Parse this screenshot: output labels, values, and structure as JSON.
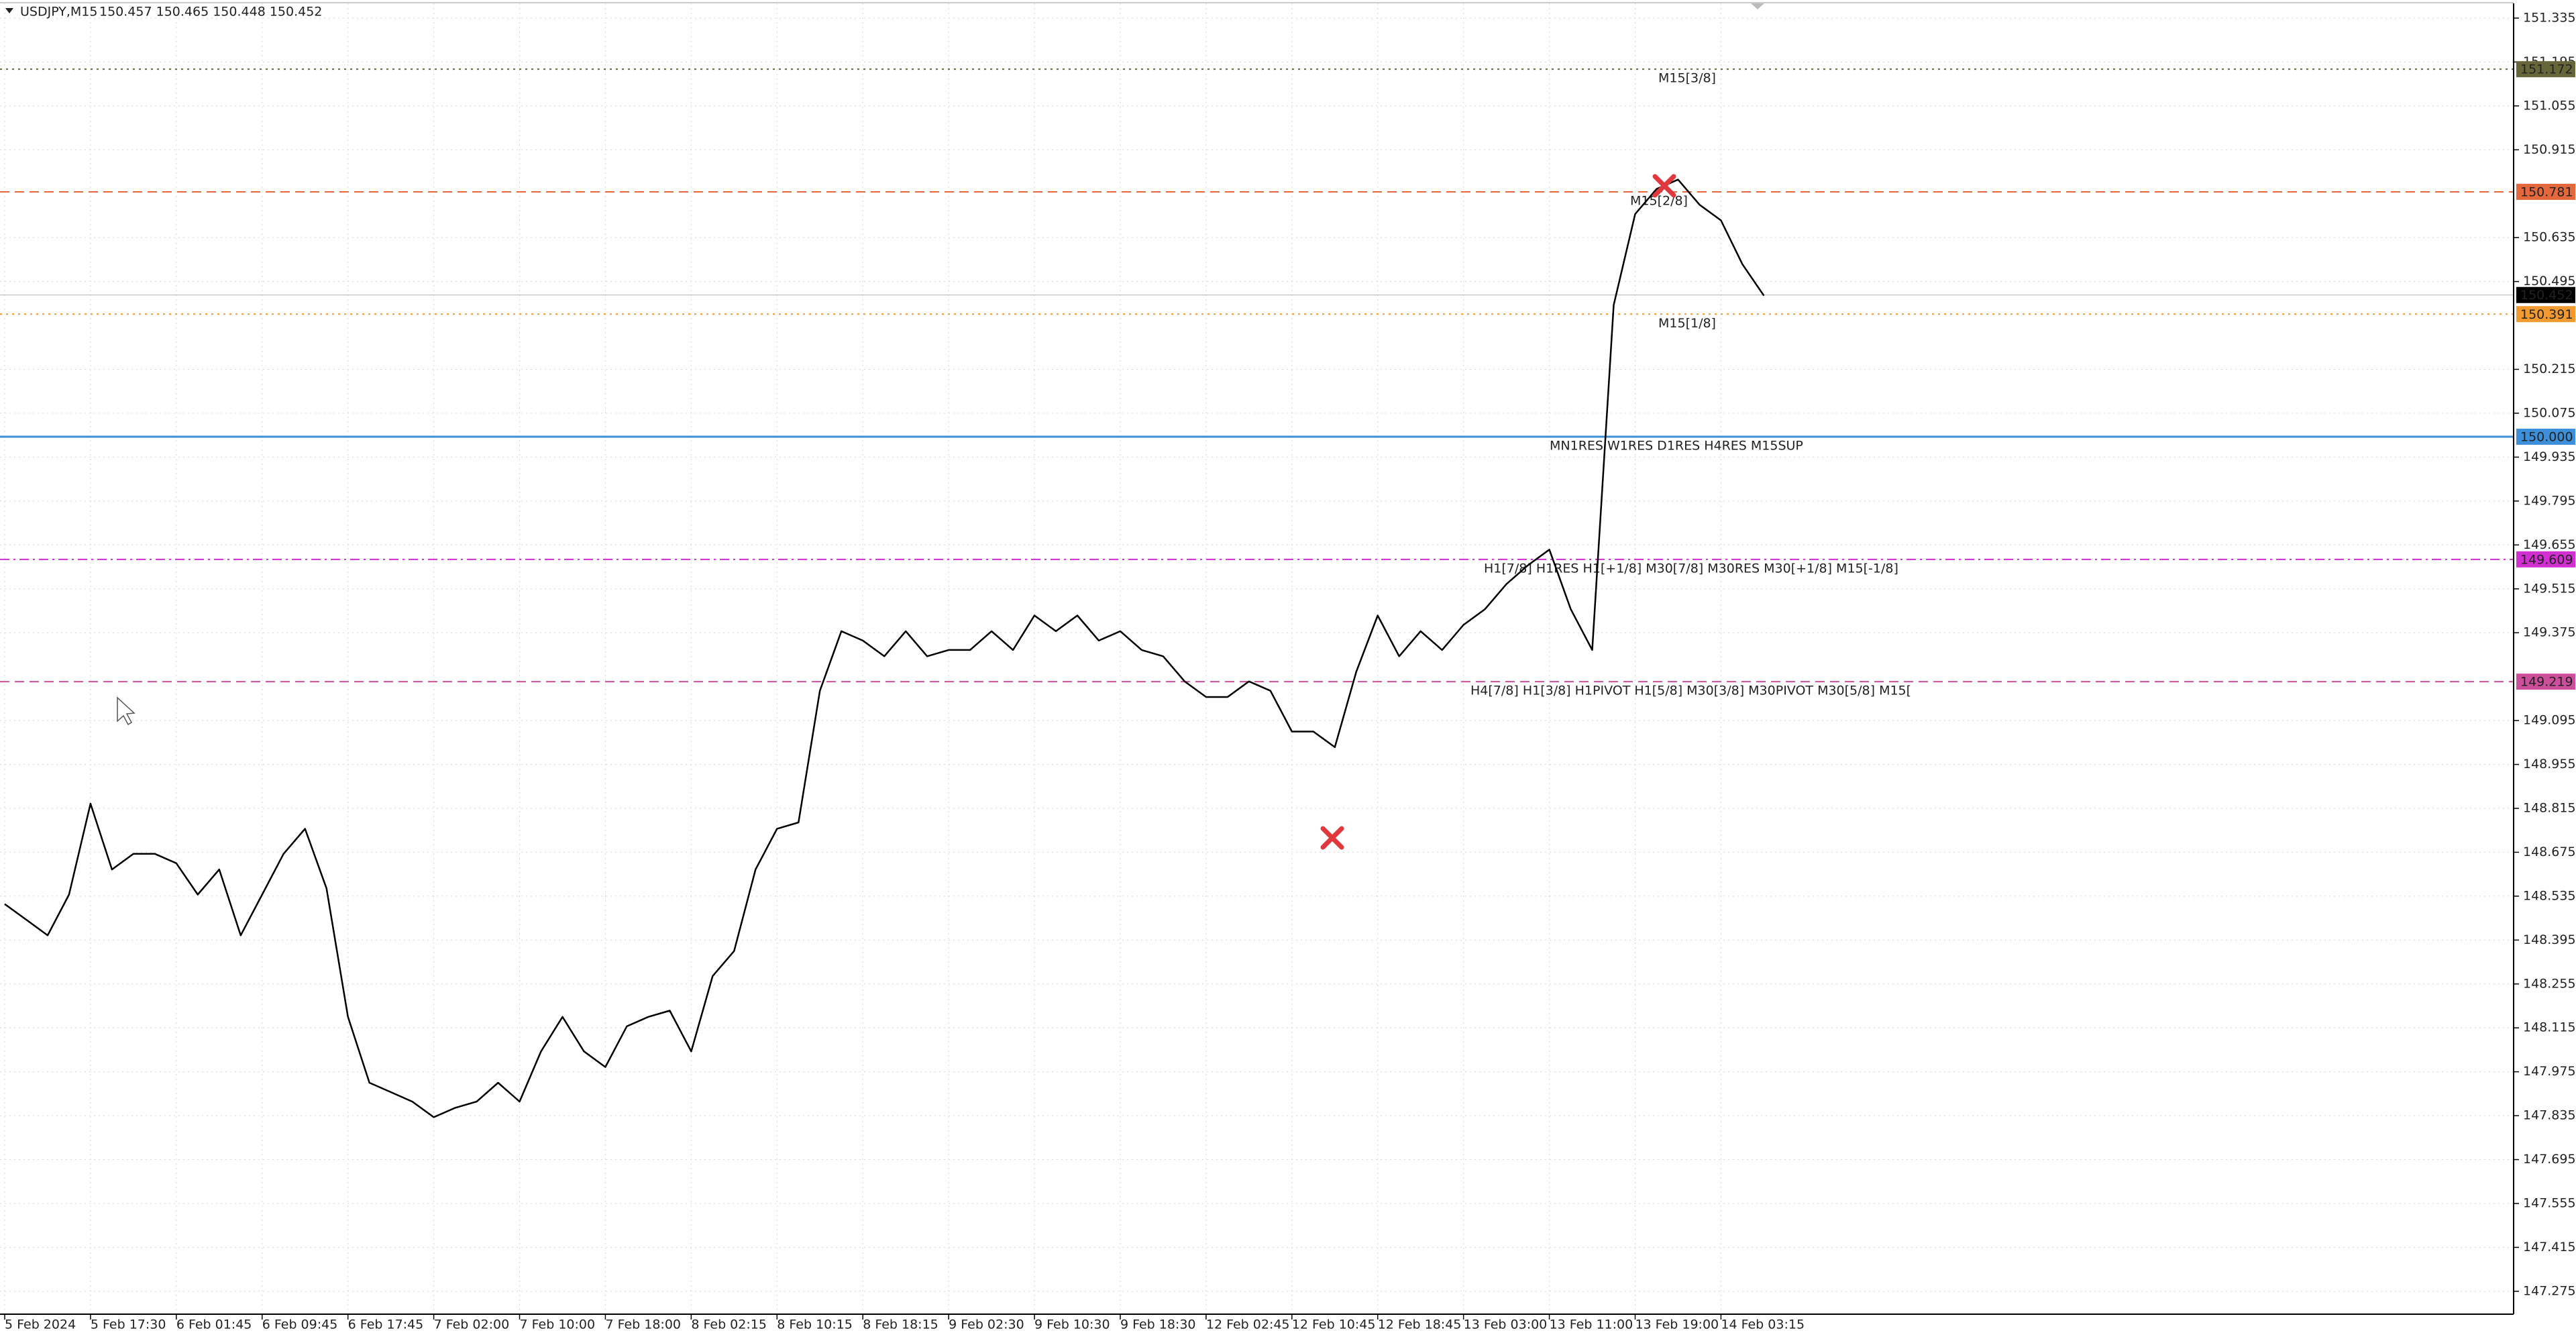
{
  "chart_data": {
    "type": "line",
    "title": "USDJPY,M15",
    "subtitle": "150.457 150.465 150.448 150.452",
    "color": "#000000",
    "grid": true,
    "ylim": [
      147.202,
      151.382
    ],
    "yticks": [
      151.335,
      151.195,
      151.055,
      150.915,
      150.635,
      150.495,
      150.215,
      150.075,
      149.935,
      149.795,
      149.655,
      149.515,
      149.375,
      149.095,
      148.955,
      148.815,
      148.675,
      148.535,
      148.395,
      148.255,
      148.115,
      147.975,
      147.835,
      147.695,
      147.555,
      147.415,
      147.275
    ],
    "categories": [
      "5 Feb 2024",
      null,
      null,
      null,
      "5 Feb 17:30",
      null,
      null,
      null,
      "6 Feb 01:45",
      null,
      null,
      null,
      "6 Feb 09:45",
      null,
      null,
      null,
      "6 Feb 17:45",
      null,
      null,
      null,
      "7 Feb 02:00",
      null,
      null,
      null,
      "7 Feb 10:00",
      null,
      null,
      null,
      "7 Feb 18:00",
      null,
      null,
      null,
      "8 Feb 02:15",
      null,
      null,
      null,
      "8 Feb 10:15",
      null,
      null,
      null,
      "8 Feb 18:15",
      null,
      null,
      null,
      "9 Feb 02:30",
      null,
      null,
      null,
      "9 Feb 10:30",
      null,
      null,
      null,
      "9 Feb 18:30",
      null,
      null,
      null,
      "12 Feb 02:45",
      null,
      null,
      null,
      "12 Feb 10:45",
      null,
      null,
      null,
      "12 Feb 18:45",
      null,
      null,
      null,
      "13 Feb 03:00",
      null,
      null,
      null,
      "13 Feb 11:00",
      null,
      null,
      null,
      "13 Feb 19:00",
      null,
      null,
      null,
      "14 Feb 03:15",
      null,
      null
    ],
    "values": [
      148.51,
      148.46,
      148.41,
      148.54,
      148.83,
      148.62,
      148.67,
      148.67,
      148.64,
      148.54,
      148.62,
      148.41,
      148.54,
      148.67,
      148.75,
      148.56,
      148.15,
      147.94,
      147.91,
      147.88,
      147.83,
      147.86,
      147.88,
      147.94,
      147.88,
      148.04,
      148.15,
      148.04,
      147.99,
      148.12,
      148.15,
      148.17,
      148.04,
      148.28,
      148.36,
      148.62,
      148.75,
      148.77,
      149.19,
      149.38,
      149.35,
      149.3,
      149.38,
      149.3,
      149.32,
      149.32,
      149.38,
      149.32,
      149.43,
      149.38,
      149.43,
      149.35,
      149.38,
      149.32,
      149.3,
      149.22,
      149.17,
      149.17,
      149.22,
      149.19,
      149.06,
      149.06,
      149.01,
      149.25,
      149.43,
      149.3,
      149.38,
      149.32,
      149.4,
      149.45,
      149.53,
      149.59,
      149.64,
      149.45,
      149.32,
      150.42,
      150.71,
      150.79,
      150.82,
      150.74,
      150.69,
      150.55,
      150.45
    ],
    "last_price": 150.452,
    "levels": [
      {
        "name": "M15[3/8]",
        "value": 151.172,
        "color": "#66663a",
        "dash": "3 6"
      },
      {
        "name": "M15[2/8]",
        "value": 150.781,
        "color": "#e5683c",
        "dash": "14 8"
      },
      {
        "name": "M15[1/8]",
        "value": 150.391,
        "color": "#f09a30",
        "dash": "3 6"
      },
      {
        "name": "MN1RES W1RES D1RES H4RES M15SUP",
        "value": 150,
        "value_label": "150.000",
        "color": "#3c8fd8",
        "dash": "none"
      },
      {
        "name": "H1[7/8] H1RES H1[+1/8] M30[7/8] M30RES M30[+1/8] M15[-1/8]",
        "value": 149.609,
        "color": "#d22fd2",
        "dash": "14 6 3 6"
      },
      {
        "name": "H4[7/8] H1[3/8] H1PIVOT H1[5/8] M30[3/8] M30PIVOT M30[5/8] M15[",
        "value": 149.219,
        "color": "#cc4f9c",
        "dash": "14 8"
      }
    ]
  }
}
